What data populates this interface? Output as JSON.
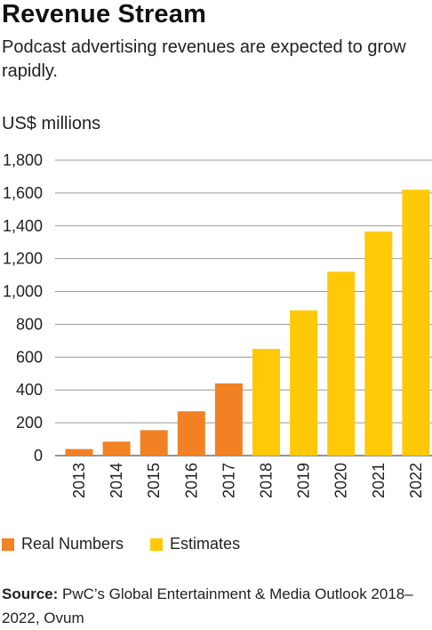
{
  "title": "Revenue Stream",
  "subtitle": "Podcast advertising revenues are expected to grow rapidly.",
  "unit_label": "US$ millions",
  "legend": [
    {
      "label": "Real Numbers",
      "color": "#F28123"
    },
    {
      "label": "Estimates",
      "color": "#FFC907"
    }
  ],
  "source": {
    "label": "Source:",
    "text": " PwC’s Global Entertainment & Media Outlook 2018–2022, Ovum"
  },
  "chart_data": {
    "type": "bar",
    "categories": [
      "2013",
      "2014",
      "2015",
      "2016",
      "2017",
      "2018",
      "2019",
      "2020",
      "2021",
      "2022"
    ],
    "series": [
      {
        "name": "Real Numbers",
        "color": "#F28123",
        "values": [
          40,
          85,
          155,
          270,
          440,
          null,
          null,
          null,
          null,
          null
        ]
      },
      {
        "name": "Estimates",
        "color": "#FFC907",
        "values": [
          null,
          null,
          null,
          null,
          null,
          650,
          885,
          1120,
          1365,
          1620
        ]
      }
    ],
    "yticks": [
      "0",
      "200",
      "400",
      "600",
      "800",
      "1,000",
      "1,200",
      "1,400",
      "1,600",
      "1,800"
    ],
    "ylim": [
      0,
      1800
    ],
    "ylabel": "US$ millions",
    "grid": true,
    "legend_position": "bottom-left"
  }
}
